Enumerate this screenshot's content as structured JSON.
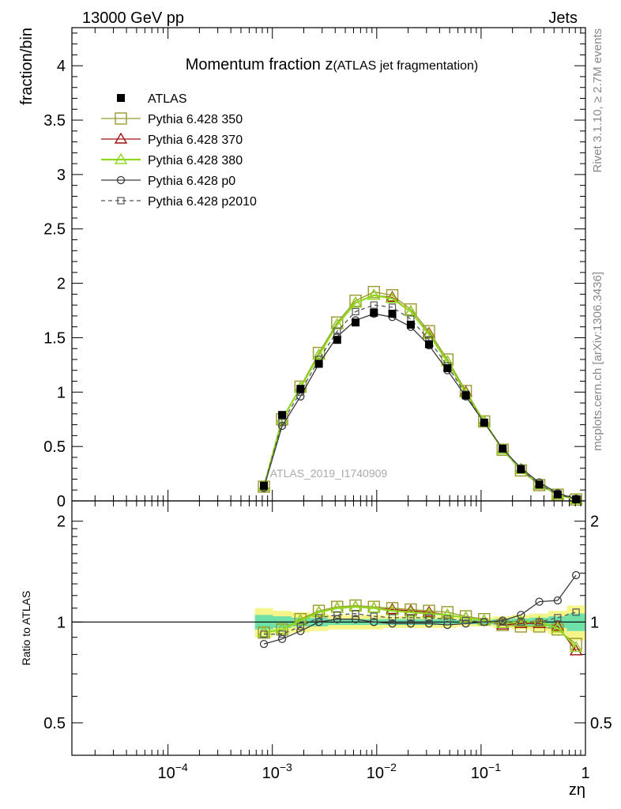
{
  "header": {
    "left": "13000 GeV pp",
    "right": "Jets"
  },
  "side_labels": {
    "rivet": "Rivet 3.1.10, ≥ 2.7M events",
    "mcplots": "mcplots.cern.ch [arXiv:1306.3436]"
  },
  "chart_data": [
    {
      "type": "line",
      "title_main": "Momentum fraction z",
      "title_sub": "(ATLAS jet fragmentation)",
      "ylabel": "fraction/bin",
      "xscale": "log",
      "xlim": [
        1.2e-05,
        1.0
      ],
      "ylim": [
        0,
        4.35
      ],
      "yticks": [
        0,
        0.5,
        1,
        1.5,
        2,
        2.5,
        3,
        3.5,
        4
      ],
      "ytick_labels": [
        "0",
        "0.5",
        "1",
        "1.5",
        "2",
        "2.5",
        "3",
        "3.5",
        "4"
      ],
      "watermark": "ATLAS_2019_I1740909",
      "legend_position": "top-left",
      "x": [
        0.00083,
        0.00124,
        0.00186,
        0.00279,
        0.00418,
        0.00627,
        0.0094,
        0.0141,
        0.0212,
        0.0317,
        0.0476,
        0.0714,
        0.107,
        0.161,
        0.241,
        0.361,
        0.542,
        0.813
      ],
      "series": [
        {
          "name": "ATLAS",
          "color": "#000000",
          "marker": "filled-square",
          "dash": "none",
          "values": [
            0.14,
            0.79,
            1.03,
            1.26,
            1.48,
            1.64,
            1.73,
            1.72,
            1.62,
            1.44,
            1.22,
            0.97,
            0.72,
            0.48,
            0.29,
            0.15,
            0.06,
            0.015
          ]
        },
        {
          "name": "Pythia 6.428 350",
          "color": "#9a9a2a",
          "marker": "open-square",
          "dash": "none",
          "values": [
            0.13,
            0.75,
            1.05,
            1.36,
            1.64,
            1.84,
            1.92,
            1.89,
            1.76,
            1.56,
            1.3,
            1.01,
            0.73,
            0.47,
            0.28,
            0.145,
            0.057,
            0.013
          ]
        },
        {
          "name": "Pythia 6.428 370",
          "color": "#a01010",
          "marker": "open-triangle",
          "dash": "none",
          "values": [
            0.13,
            0.75,
            1.04,
            1.34,
            1.62,
            1.82,
            1.89,
            1.87,
            1.74,
            1.54,
            1.28,
            1.0,
            0.73,
            0.47,
            0.29,
            0.148,
            0.058,
            0.012
          ]
        },
        {
          "name": "Pythia 6.428 380",
          "color": "#90d820",
          "marker": "open-triangle",
          "dash": "none",
          "values": [
            0.13,
            0.75,
            1.04,
            1.34,
            1.62,
            1.82,
            1.89,
            1.86,
            1.74,
            1.53,
            1.28,
            0.99,
            0.73,
            0.47,
            0.29,
            0.149,
            0.058,
            0.013
          ]
        },
        {
          "name": "Pythia 6.428 p0",
          "color": "#3a3a3a",
          "marker": "open-circle",
          "dash": "none",
          "values": [
            0.12,
            0.69,
            0.96,
            1.26,
            1.51,
            1.66,
            1.72,
            1.69,
            1.6,
            1.43,
            1.2,
            0.96,
            0.72,
            0.48,
            0.3,
            0.17,
            0.07,
            0.02
          ]
        },
        {
          "name": "Pythia 6.428 p2010",
          "color": "#555555",
          "marker": "open-square-small",
          "dash": "dashed",
          "values": [
            0.13,
            0.72,
            1.0,
            1.3,
            1.56,
            1.74,
            1.8,
            1.78,
            1.67,
            1.48,
            1.24,
            0.98,
            0.72,
            0.48,
            0.29,
            0.15,
            0.06,
            0.016
          ]
        }
      ]
    },
    {
      "type": "line",
      "ylabel": "Ratio to ATLAS",
      "xlabel": "zη",
      "xscale": "log",
      "yscale": "log",
      "xlim": [
        1.2e-05,
        1.0
      ],
      "ylim": [
        0.4,
        2.3
      ],
      "yticks": [
        0.5,
        1,
        2
      ],
      "ytick_labels": [
        "0.5",
        "1",
        "2"
      ],
      "xticks": [
        0.0001,
        0.001,
        0.01,
        0.1,
        1
      ],
      "xtick_labels": [
        "10",
        "10",
        "10",
        "10",
        "1"
      ],
      "xtick_exponents": [
        "−4",
        "−3",
        "−2",
        "−1",
        ""
      ],
      "reference_line": 1,
      "band_outer": {
        "color": "#f5f58a",
        "lo": [
          0.9,
          0.92,
          0.93,
          0.94,
          0.95,
          0.95,
          0.95,
          0.96,
          0.96,
          0.96,
          0.96,
          0.97,
          0.97,
          0.96,
          0.95,
          0.94,
          0.92,
          0.88
        ],
        "hi": [
          1.1,
          1.08,
          1.07,
          1.06,
          1.05,
          1.05,
          1.05,
          1.04,
          1.04,
          1.04,
          1.04,
          1.03,
          1.03,
          1.04,
          1.05,
          1.06,
          1.08,
          1.12
        ]
      },
      "band_inner": {
        "color": "#6ee0a8",
        "lo": [
          0.95,
          0.96,
          0.97,
          0.97,
          0.98,
          0.98,
          0.98,
          0.98,
          0.98,
          0.98,
          0.98,
          0.985,
          0.985,
          0.98,
          0.975,
          0.97,
          0.96,
          0.94
        ],
        "hi": [
          1.05,
          1.04,
          1.03,
          1.03,
          1.02,
          1.02,
          1.02,
          1.02,
          1.02,
          1.02,
          1.02,
          1.015,
          1.015,
          1.02,
          1.025,
          1.03,
          1.04,
          1.06
        ]
      },
      "x": [
        0.00083,
        0.00124,
        0.00186,
        0.00279,
        0.00418,
        0.00627,
        0.0094,
        0.0141,
        0.0212,
        0.0317,
        0.0476,
        0.0714,
        0.107,
        0.161,
        0.241,
        0.361,
        0.542,
        0.813
      ],
      "series": [
        {
          "name": "Pythia 6.428 350",
          "color": "#9a9a2a",
          "marker": "open-square",
          "dash": "none",
          "values": [
            0.93,
            0.95,
            1.02,
            1.08,
            1.11,
            1.12,
            1.11,
            1.1,
            1.09,
            1.08,
            1.07,
            1.04,
            1.02,
            0.98,
            0.97,
            0.97,
            0.95,
            0.86
          ]
        },
        {
          "name": "Pythia 6.428 370",
          "color": "#a01010",
          "marker": "open-triangle",
          "dash": "none",
          "values": [
            0.93,
            0.95,
            1.01,
            1.07,
            1.1,
            1.11,
            1.1,
            1.09,
            1.08,
            1.07,
            1.05,
            1.03,
            1.01,
            0.98,
            0.99,
            0.99,
            0.97,
            0.82
          ]
        },
        {
          "name": "Pythia 6.428 380",
          "color": "#90d820",
          "marker": "open-triangle",
          "dash": "none",
          "values": [
            0.93,
            0.95,
            1.01,
            1.07,
            1.1,
            1.11,
            1.1,
            1.08,
            1.07,
            1.06,
            1.05,
            1.03,
            1.01,
            0.99,
            1.0,
            1.0,
            0.96,
            0.84
          ]
        },
        {
          "name": "Pythia 6.428 p0",
          "color": "#3a3a3a",
          "marker": "open-circle",
          "dash": "none",
          "values": [
            0.86,
            0.89,
            0.94,
            1.0,
            1.02,
            1.02,
            1.0,
            0.99,
            0.99,
            0.99,
            0.98,
            0.99,
            1.0,
            1.01,
            1.05,
            1.15,
            1.16,
            1.38
          ]
        },
        {
          "name": "Pythia 6.428 p2010",
          "color": "#555555",
          "marker": "open-square-small",
          "dash": "dashed",
          "values": [
            0.92,
            0.92,
            0.97,
            1.03,
            1.05,
            1.06,
            1.04,
            1.03,
            1.03,
            1.03,
            1.02,
            1.01,
            1.0,
            1.0,
            1.0,
            1.0,
            1.03,
            1.07
          ]
        }
      ]
    }
  ]
}
